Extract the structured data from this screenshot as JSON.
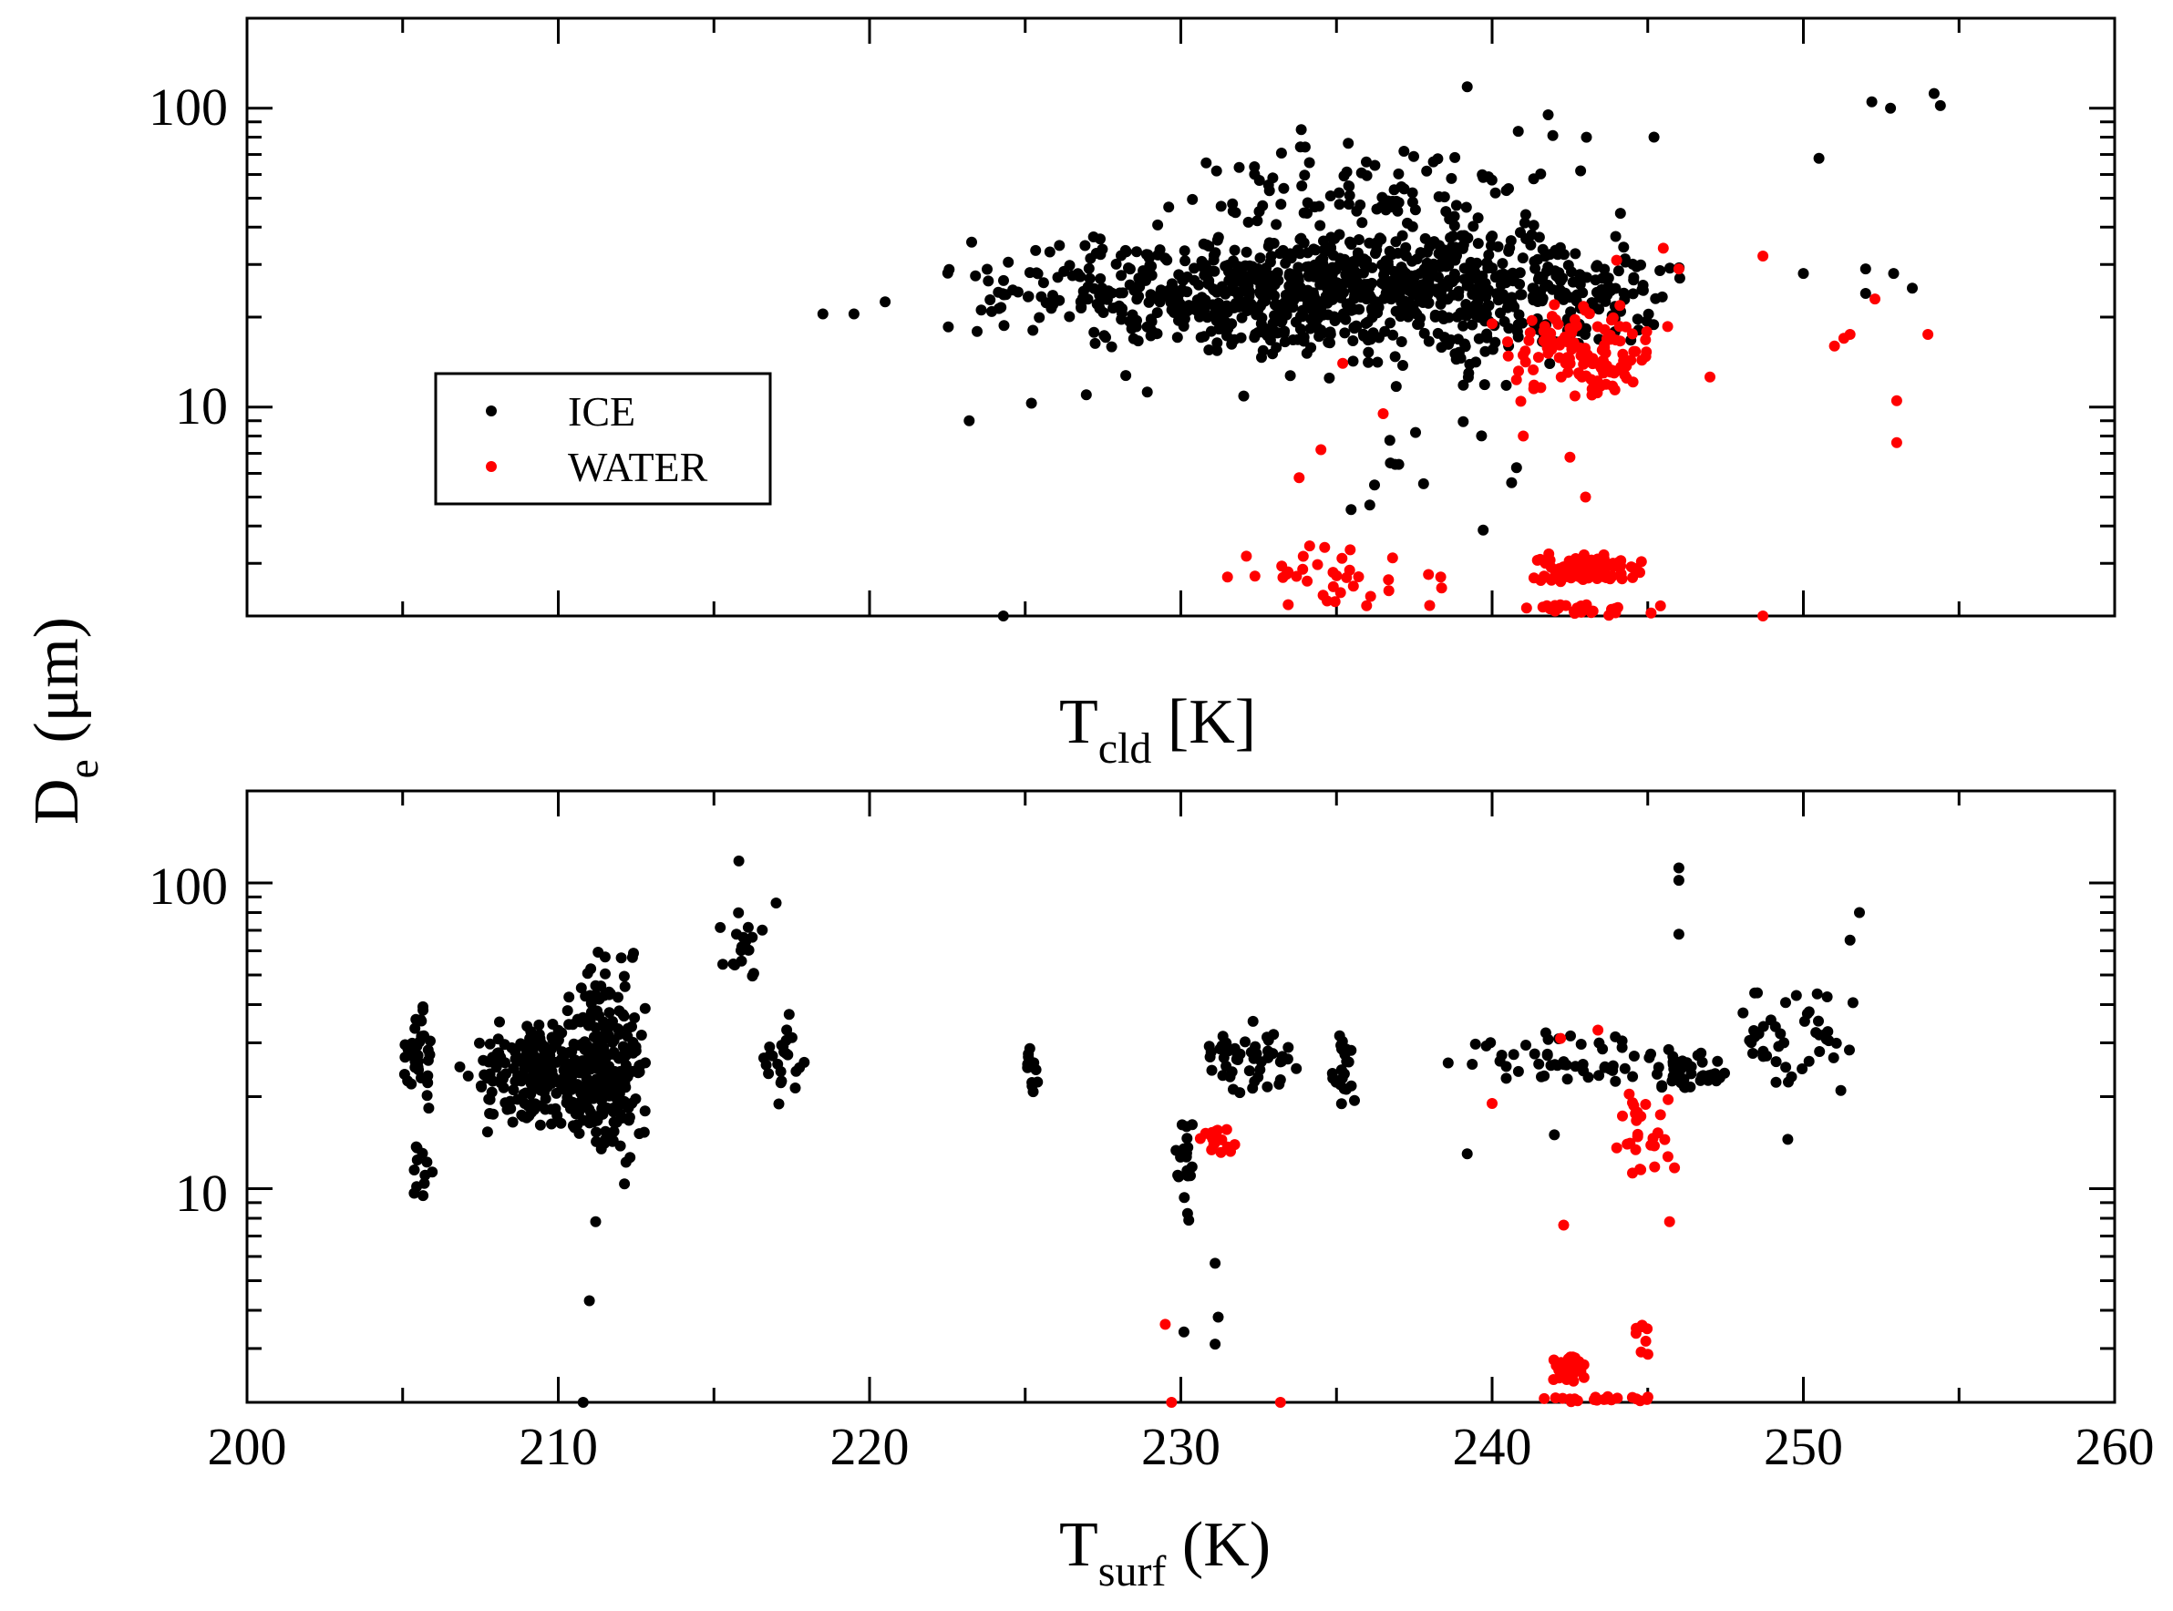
{
  "chart_data": [
    {
      "type": "scatter",
      "panel": "top",
      "xlabel_main": "T",
      "xlabel_sub": "cld",
      "xlabel_suffix": " [K]",
      "xlim": [
        200,
        260
      ],
      "ylim": [
        2,
        200
      ],
      "yscale": "log",
      "y_tick_labels": [
        "10",
        "100"
      ],
      "x_tick_labels_visible": false,
      "legend": {
        "placement": "middle-left",
        "entries": [
          "ICE",
          "WATER"
        ]
      },
      "series": [
        {
          "name": "ICE",
          "color": "#000000",
          "clusters": [
            {
              "x": [
                222,
                247
              ],
              "y": [
                15,
                40
              ],
              "n": 780
            },
            {
              "x": [
                226,
                246
              ],
              "y": [
                9,
                60
              ],
              "n": 260
            },
            {
              "x": [
                230,
                244
              ],
              "y": [
                30,
                90
              ],
              "n": 90
            },
            {
              "x": [
                233,
                243
              ],
              "y": [
                3,
                12
              ],
              "n": 14
            }
          ],
          "points": [
            [
              218.5,
              20.5
            ],
            [
              219.5,
              20.5
            ],
            [
              220.5,
              22.5
            ],
            [
              223.2,
              9
            ],
            [
              224.3,
              2
            ],
            [
              225.2,
              10.3
            ],
            [
              239.2,
              118
            ],
            [
              241.8,
              95
            ],
            [
              245.2,
              80
            ],
            [
              250.5,
              68
            ],
            [
              252.2,
              105
            ],
            [
              252.8,
              100
            ],
            [
              254.2,
              112
            ],
            [
              254.4,
              102
            ],
            [
              250,
              28
            ],
            [
              252,
              29
            ],
            [
              252.9,
              28
            ],
            [
              253.5,
              25
            ],
            [
              252,
              24
            ]
          ]
        },
        {
          "name": "WATER",
          "color": "#ff0000",
          "clusters": [
            {
              "x": [
                240,
                246
              ],
              "y": [
                10,
                22
              ],
              "n": 120
            },
            {
              "x": [
                241,
                245
              ],
              "y": [
                2.5,
                3.3
              ],
              "n": 90
            },
            {
              "x": [
                240,
                246
              ],
              "y": [
                2,
                2.2
              ],
              "n": 30
            },
            {
              "x": [
                231,
                239
              ],
              "y": [
                2,
                3.6
              ],
              "n": 36
            }
          ],
          "points": [
            [
              231.5,
              2.7
            ],
            [
              233.8,
              5.8
            ],
            [
              234.5,
              7.2
            ],
            [
              235.2,
              14
            ],
            [
              236.5,
              9.5
            ],
            [
              240,
              19
            ],
            [
              241,
              8
            ],
            [
              242,
              22
            ],
            [
              242.5,
              6.8
            ],
            [
              243,
              5
            ],
            [
              244,
              31
            ],
            [
              245.5,
              34
            ],
            [
              246,
              29
            ],
            [
              247,
              12.6
            ],
            [
              248.7,
              32
            ],
            [
              248.7,
              2
            ],
            [
              251,
              16
            ],
            [
              251.3,
              17
            ],
            [
              251.5,
              17.5
            ],
            [
              252.3,
              23
            ],
            [
              253,
              10.5
            ],
            [
              253,
              7.6
            ],
            [
              254,
              17.5
            ]
          ]
        }
      ]
    },
    {
      "type": "scatter",
      "panel": "bottom",
      "xlabel_main": "T",
      "xlabel_sub": "surf",
      "xlabel_suffix": " (K)",
      "xlim": [
        200,
        260
      ],
      "ylim": [
        2,
        200
      ],
      "yscale": "log",
      "x_tick_labels": [
        "200",
        "210",
        "220",
        "230",
        "240",
        "250",
        "260"
      ],
      "y_tick_labels": [
        "10",
        "100"
      ],
      "series": [
        {
          "name": "ICE",
          "color": "#000000",
          "clusters": [
            {
              "x": [
                205,
                206
              ],
              "y": [
                18,
                45
              ],
              "n": 40
            },
            {
              "x": [
                205.3,
                206
              ],
              "y": [
                9,
                15
              ],
              "n": 12
            },
            {
              "x": [
                206.8,
                213
              ],
              "y": [
                15,
                38
              ],
              "n": 300
            },
            {
              "x": [
                210,
                213
              ],
              "y": [
                10,
                70
              ],
              "n": 160
            },
            {
              "x": [
                214.8,
                217
              ],
              "y": [
                45,
                90
              ],
              "n": 18
            },
            {
              "x": [
                216.5,
                218
              ],
              "y": [
                18,
                40
              ],
              "n": 24
            },
            {
              "x": [
                225,
                225.5
              ],
              "y": [
                20,
                30
              ],
              "n": 14
            },
            {
              "x": [
                229.8,
                230.5
              ],
              "y": [
                7,
                22
              ],
              "n": 20
            },
            {
              "x": [
                230.5,
                234
              ],
              "y": [
                20,
                36
              ],
              "n": 50
            },
            {
              "x": [
                234.8,
                235.6
              ],
              "y": [
                18,
                33
              ],
              "n": 22
            },
            {
              "x": [
                238,
                246
              ],
              "y": [
                20,
                35
              ],
              "n": 50
            },
            {
              "x": [
                245,
                247.5
              ],
              "y": [
                20,
                30
              ],
              "n": 40
            },
            {
              "x": [
                247.5,
                252
              ],
              "y": [
                20,
                50
              ],
              "n": 45
            }
          ],
          "points": [
            [
              210.8,
              2
            ],
            [
              211,
              4.3
            ],
            [
              211.2,
              7.8
            ],
            [
              215.8,
              118
            ],
            [
              217,
              86
            ],
            [
              230.1,
              3.4
            ],
            [
              231.1,
              5.7
            ],
            [
              231.2,
              3.8
            ],
            [
              231.1,
              3.1
            ],
            [
              239.2,
              13
            ],
            [
              242,
              15
            ],
            [
              246,
              112
            ],
            [
              246,
              102
            ],
            [
              246,
              68
            ],
            [
              249.5,
              14.5
            ],
            [
              251.8,
              80
            ],
            [
              251.5,
              65
            ]
          ]
        },
        {
          "name": "WATER",
          "color": "#ff0000",
          "clusters": [
            {
              "x": [
                230.5,
                232
              ],
              "y": [
                12.5,
                16
              ],
              "n": 18
            },
            {
              "x": [
                241.8,
                243
              ],
              "y": [
                2.3,
                3
              ],
              "n": 40
            },
            {
              "x": [
                241.5,
                246
              ],
              "y": [
                2,
                2.1
              ],
              "n": 22
            },
            {
              "x": [
                243.5,
                246
              ],
              "y": [
                10,
                24
              ],
              "n": 28
            },
            {
              "x": [
                244.5,
                245.2
              ],
              "y": [
                2.6,
                4
              ],
              "n": 8
            }
          ],
          "points": [
            [
              229.5,
              3.6
            ],
            [
              229.7,
              2
            ],
            [
              233.2,
              2
            ],
            [
              240,
              19
            ],
            [
              242.2,
              31
            ],
            [
              242.3,
              7.6
            ],
            [
              243.4,
              33
            ],
            [
              245.7,
              7.8
            ]
          ]
        }
      ]
    }
  ],
  "shared_ylabel_main": "D",
  "shared_ylabel_sub": "e",
  "shared_ylabel_suffix": " (μm)"
}
